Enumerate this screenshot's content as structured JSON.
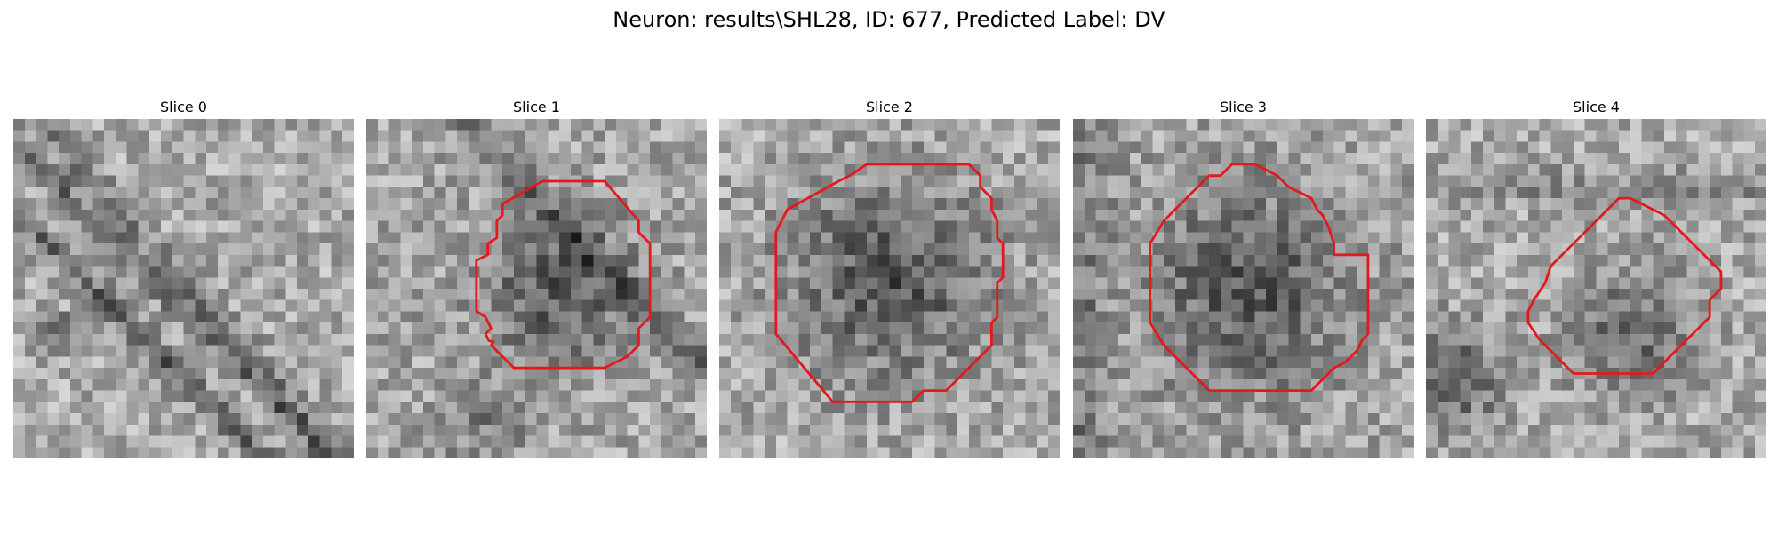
{
  "figure": {
    "title": "Neuron: results\\SHL28, ID: 677, Predicted Label: DV"
  },
  "colors": {
    "contour": "#e31a1c",
    "background": "#ffffff"
  },
  "slices": [
    {
      "label": "Slice 0",
      "has_contour": false
    },
    {
      "label": "Slice 1",
      "has_contour": true
    },
    {
      "label": "Slice 2",
      "has_contour": true
    },
    {
      "label": "Slice 3",
      "has_contour": true
    },
    {
      "label": "Slice 4",
      "has_contour": true
    }
  ]
}
